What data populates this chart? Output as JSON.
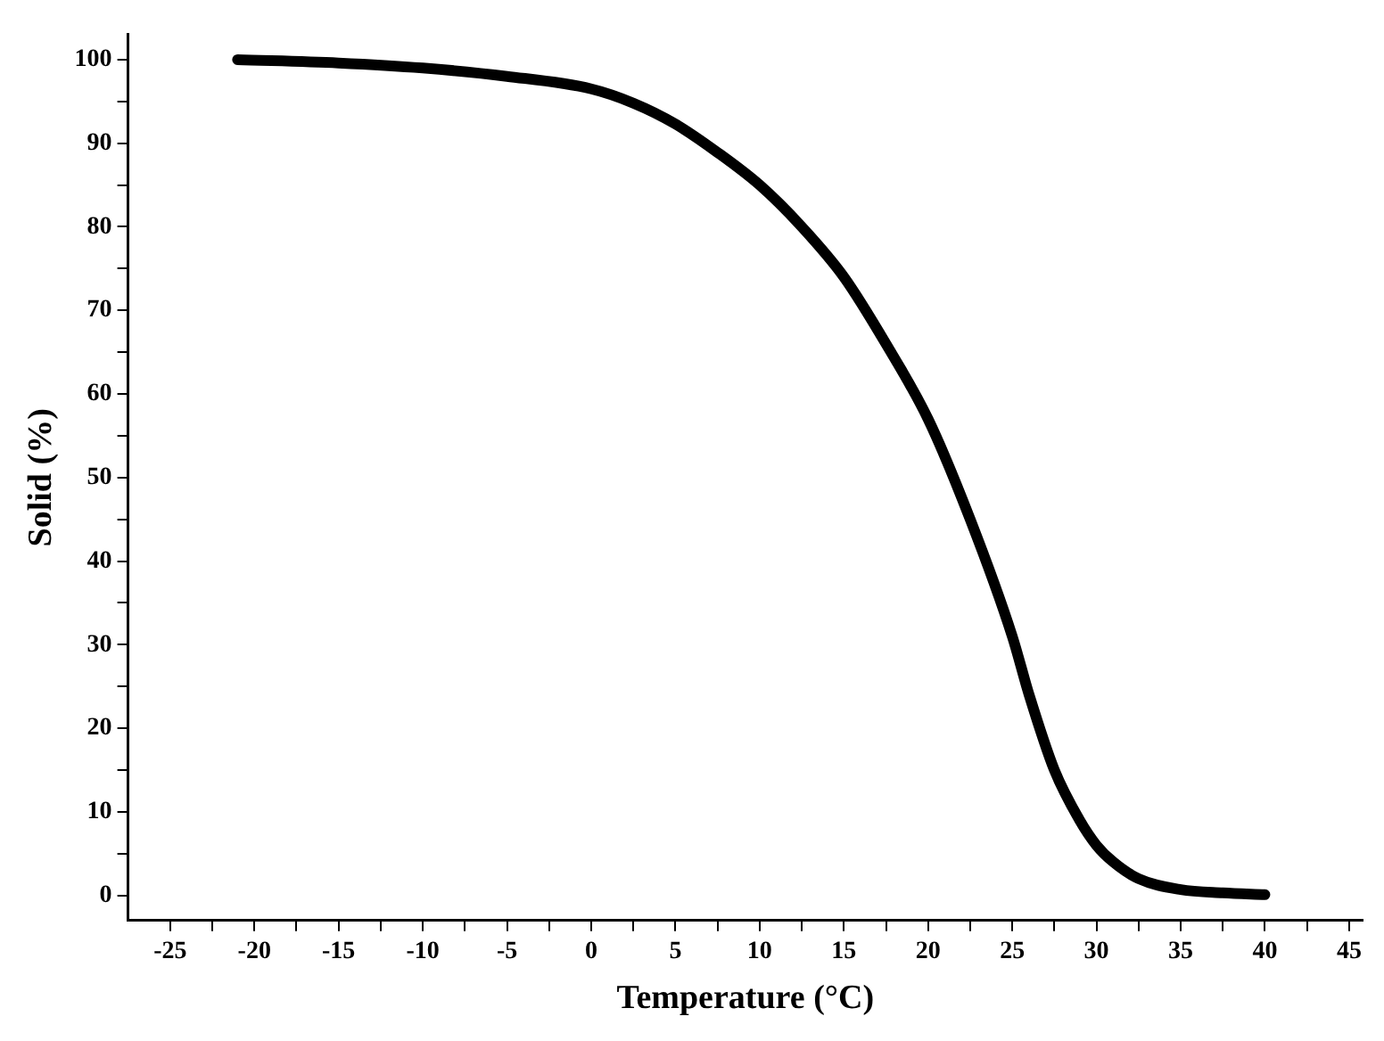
{
  "chart_data": {
    "type": "line",
    "xlabel": "Temperature (°C)",
    "ylabel": "Solid (%)",
    "xlim": [
      -27.5,
      45.8
    ],
    "ylim": [
      -3,
      103
    ],
    "xticks": [
      -25,
      {
        "value": -22.5,
        "label": null
      },
      -20,
      {
        "value": -17.5,
        "label": null
      },
      -15,
      {
        "value": -12.5,
        "label": null
      },
      -10,
      {
        "value": -7.5,
        "label": null
      },
      -5,
      {
        "value": -2.5,
        "label": null
      },
      0,
      {
        "value": 2.5,
        "label": null
      },
      5,
      {
        "value": 7.5,
        "label": null
      },
      10,
      {
        "value": 12.5,
        "label": null
      },
      15,
      {
        "value": 17.5,
        "label": null
      },
      20,
      {
        "value": 22.5,
        "label": null
      },
      25,
      {
        "value": 27.5,
        "label": null
      },
      30,
      {
        "value": 32.5,
        "label": null
      },
      35,
      {
        "value": 37.5,
        "label": null
      },
      40,
      {
        "value": 42.5,
        "label": null
      },
      45
    ],
    "yticks": [
      0,
      {
        "value": 5,
        "label": null
      },
      10,
      {
        "value": 15,
        "label": null
      },
      20,
      {
        "value": 25,
        "label": null
      },
      30,
      {
        "value": 35,
        "label": null
      },
      40,
      {
        "value": 45,
        "label": null
      },
      50,
      {
        "value": 55,
        "label": null
      },
      60,
      {
        "value": 65,
        "label": null
      },
      70,
      {
        "value": 75,
        "label": null
      },
      80,
      {
        "value": 85,
        "label": null
      },
      90,
      {
        "value": 95,
        "label": null
      },
      100
    ],
    "grid": false,
    "legend": false,
    "marker": "none",
    "line_style": "solid",
    "series": [
      {
        "color": "#000000",
        "x": [
          -21,
          -15,
          -10,
          -5,
          0,
          2.5,
          5,
          7.5,
          10,
          12.5,
          15,
          17.5,
          20,
          22.5,
          25,
          26,
          27.5,
          29,
          30,
          31,
          32.5,
          35,
          37.5,
          40
        ],
        "values": [
          100,
          99.6,
          99,
          98,
          96.5,
          94.8,
          92.3,
          88.9,
          85,
          80,
          74,
          66,
          57,
          45,
          31,
          24,
          15,
          9,
          6,
          4,
          2,
          0.7,
          0.3,
          0.1
        ]
      }
    ]
  }
}
